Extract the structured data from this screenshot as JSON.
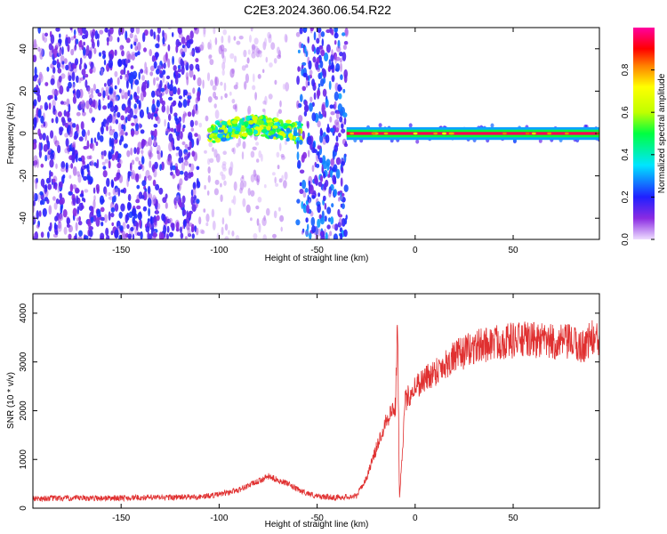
{
  "chart_data": [
    {
      "type": "heatmap",
      "title": "C2E3.2024.360.06.54.R22",
      "xlabel": "Height of straight line (km)",
      "ylabel": "Frequency (Hz)",
      "xlim": [
        -195,
        94
      ],
      "ylim": [
        -50,
        50
      ],
      "xticks": [
        -150,
        -100,
        -50,
        0,
        50
      ],
      "yticks": [
        -40,
        -20,
        0,
        20,
        40
      ],
      "colorbar": {
        "label": "Normalized spectral amplitude",
        "range": [
          0,
          1
        ],
        "ticks": [
          "0.0",
          "0.2",
          "0.4",
          "0.6",
          "0.8"
        ],
        "colormap": "hsv-violet-to-magenta"
      },
      "features": [
        {
          "name": "scattered-noise",
          "x_range": [
            -195,
            -110
          ],
          "freq_range": [
            -50,
            50
          ],
          "amplitude": 0.15
        },
        {
          "name": "faint-noise",
          "x_range": [
            -110,
            -65
          ],
          "freq_range": [
            -50,
            50
          ],
          "amplitude": 0.05
        },
        {
          "name": "echo-band",
          "x_range": [
            -105,
            -58
          ],
          "center_freq": [
            0,
            2,
            4,
            2,
            0
          ],
          "amplitude": 0.5
        },
        {
          "name": "noise-column",
          "x_range": [
            -60,
            -35
          ],
          "freq_range": [
            -50,
            50
          ],
          "amplitude": 0.2
        },
        {
          "name": "steady-trace",
          "x_range": [
            -35,
            94
          ],
          "center_freq": 0,
          "amplitude": 0.95
        }
      ]
    },
    {
      "type": "line",
      "title": "",
      "xlabel": "Height of straight line (km)",
      "ylabel": "SNR (10 * v/v)",
      "xlim": [
        -195,
        94
      ],
      "ylim": [
        0,
        4400
      ],
      "xticks": [
        -150,
        -100,
        -50,
        0,
        50
      ],
      "yticks": [
        0,
        1000,
        2000,
        3000,
        4000
      ],
      "color": "#e03030",
      "series": [
        {
          "name": "",
          "x": [
            -195,
            -150,
            -110,
            -100,
            -90,
            -80,
            -75,
            -70,
            -65,
            -60,
            -50,
            -40,
            -30,
            -25,
            -20,
            -15,
            -10,
            -9,
            -8,
            -5,
            0,
            10,
            20,
            30,
            40,
            50,
            60,
            70,
            80,
            85,
            90,
            94
          ],
          "y": [
            200,
            210,
            230,
            280,
            380,
            550,
            650,
            580,
            500,
            380,
            240,
            220,
            250,
            600,
            1200,
            1800,
            2100,
            3900,
            200,
            2200,
            2500,
            2800,
            3100,
            3300,
            3400,
            3450,
            3450,
            3400,
            3400,
            3300,
            3500,
            3400
          ]
        }
      ]
    }
  ]
}
